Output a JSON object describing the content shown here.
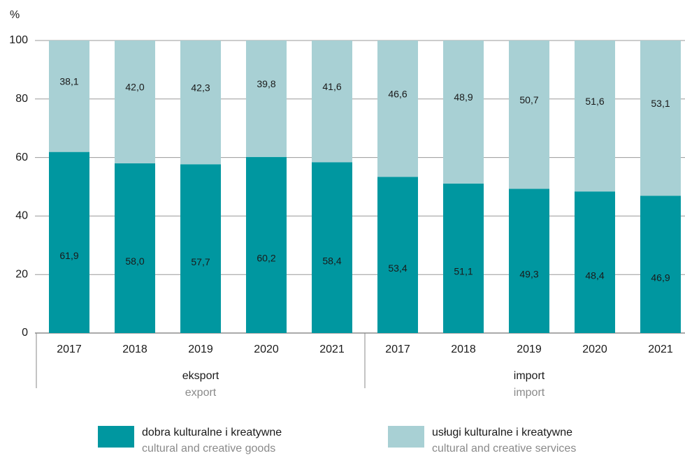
{
  "chart_data": {
    "type": "stacked_bar",
    "y_label": "%",
    "categories": [
      "2017",
      "2018",
      "2019",
      "2020",
      "2021",
      "2017",
      "2018",
      "2019",
      "2020",
      "2021"
    ],
    "groups": [
      {
        "label": "eksport",
        "label_en": "export"
      },
      {
        "label": "import",
        "label_en": "import"
      }
    ],
    "series": [
      {
        "name": "dobra kulturalne i kreatywne",
        "name_en": "cultural and creative goods",
        "color": "#0097a0",
        "values": [
          61.9,
          58.0,
          57.7,
          60.2,
          58.4,
          53.4,
          51.1,
          49.3,
          48.4,
          46.9
        ],
        "value_labels": [
          "61,9",
          "58,0",
          "57,7",
          "60,2",
          "58,4",
          "53,4",
          "51,1",
          "49,3",
          "48,4",
          "46,9"
        ]
      },
      {
        "name": "usługi kulturalne i kreatywne",
        "name_en": "cultural and creative services",
        "color": "#a8d0d4",
        "values": [
          38.1,
          42.0,
          42.3,
          39.8,
          41.6,
          46.6,
          48.9,
          50.7,
          51.6,
          53.1
        ],
        "value_labels": [
          "38,1",
          "42,0",
          "42,3",
          "39,8",
          "41,6",
          "46,6",
          "48,9",
          "50,7",
          "51,6",
          "53,1"
        ]
      }
    ],
    "ylim": [
      0,
      100
    ],
    "yticks": [
      0,
      20,
      40,
      60,
      80,
      100
    ],
    "grid": true
  }
}
